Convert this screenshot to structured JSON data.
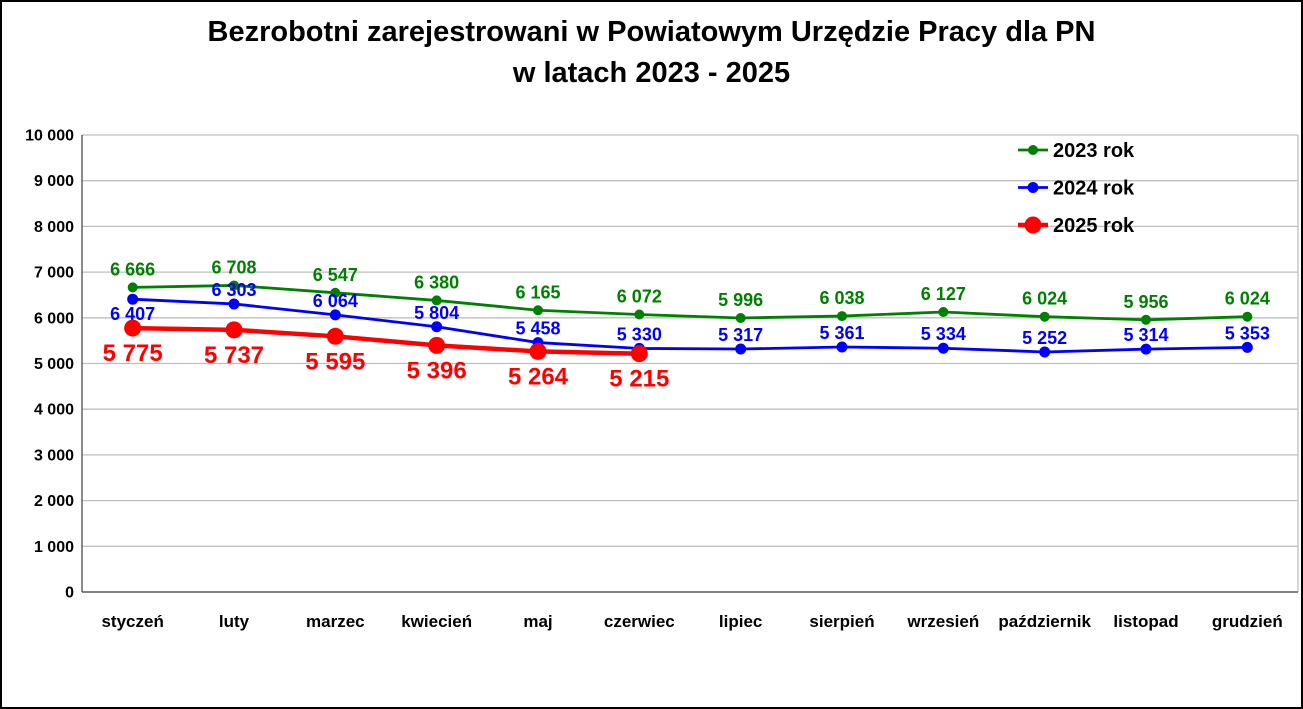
{
  "title": {
    "line1": "Bezrobotni zarejestrowani w Powiatowym Urzędzie Pracy dla PN",
    "line2": "w latach 2023 - 2025"
  },
  "chart_data": {
    "type": "line",
    "categories": [
      "styczeń",
      "luty",
      "marzec",
      "kwiecień",
      "maj",
      "czerwiec",
      "lipiec",
      "sierpień",
      "wrzesień",
      "październik",
      "listopad",
      "grudzień"
    ],
    "series": [
      {
        "name": "2023 rok",
        "color": "#008000",
        "values": [
          6666,
          6708,
          6547,
          6380,
          6165,
          6072,
          5996,
          6038,
          6127,
          6024,
          5956,
          6024
        ],
        "labels": [
          "6 666",
          "6 708",
          "6 547",
          "6 380",
          "6 165",
          "6 072",
          "5 996",
          "6 038",
          "6 127",
          "6 024",
          "5 956",
          "6 024"
        ],
        "label_position": "above",
        "label_dy": -12,
        "label_font_size": 18,
        "marker_radius": 5,
        "line_width": 2.8
      },
      {
        "name": "2024 rok",
        "color": "#0000ff",
        "values": [
          6407,
          6303,
          6064,
          5804,
          5458,
          5330,
          5317,
          5361,
          5334,
          5252,
          5314,
          5353
        ],
        "labels": [
          "6 407",
          "6 303",
          "6 064",
          "5 804",
          "5 458",
          "5 330",
          "5 317",
          "5 361",
          "5 334",
          "5 252",
          "5 314",
          "5 353"
        ],
        "label_position": "above",
        "label_dy": -8,
        "label_dy_overrides": {
          "0": 21
        },
        "label_font_size": 18,
        "marker_radius": 5.5,
        "line_width": 2.8
      },
      {
        "name": "2025 rok",
        "color": "#ff0000",
        "values": [
          5775,
          5737,
          5595,
          5396,
          5264,
          5215
        ],
        "labels": [
          "5 775",
          "5 737",
          "5 595",
          "5 396",
          "5 264",
          "5 215"
        ],
        "label_position": "below",
        "label_dy": 33,
        "label_font_size": 24,
        "marker_radius": 8.5,
        "line_width": 4.5
      }
    ],
    "ylim": [
      0,
      10000
    ],
    "ytick_step": 1000,
    "ytick_labels": [
      "0",
      "1 000",
      "2 000",
      "3 000",
      "4 000",
      "5 000",
      "6 000",
      "7 000",
      "8 000",
      "9 000",
      "10 000"
    ],
    "grid": true,
    "legend_position": "top-right",
    "xlabel": "",
    "ylabel": ""
  },
  "colors": {
    "grid": "#bfbfbf",
    "axis": "#595959",
    "background": "#ffffff",
    "border": "#000000",
    "text": "#000000"
  }
}
